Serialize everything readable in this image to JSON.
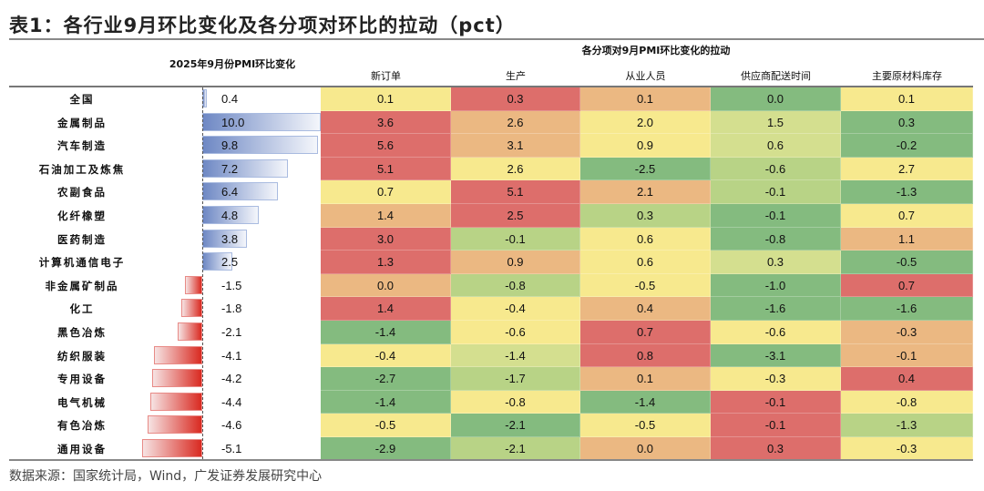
{
  "title": "表1：各行业9月环比变化及各分项对环比的拉动（pct）",
  "source": "数据来源：国家统计局，Wind，广发证券发展研究中心",
  "chart_data": {
    "type": "table",
    "left_header": "2025年9月份PMI环比变化",
    "group_header": "各分项对9月PMI环比变化的拉动",
    "columns": [
      "新订单",
      "生产",
      "从业人员",
      "供应商配送时间",
      "主要原材料库存"
    ],
    "palette": {
      "R": "#dd6e6b",
      "O": "#ebb882",
      "Y": "#f7e98e",
      "LG": "#d4df8f",
      "G": "#b8d386",
      "DG": "#84bb7f"
    },
    "bar_colors": {
      "positive": "#6e88c4",
      "negative": "#d92a21"
    },
    "rows": [
      {
        "industry": "全国",
        "pmi_change": 0.4,
        "values": [
          0.1,
          0.3,
          0.1,
          0.0,
          0.1
        ],
        "colors": [
          "Y",
          "R",
          "O",
          "DG",
          "Y"
        ]
      },
      {
        "industry": "金属制品",
        "pmi_change": 10.0,
        "values": [
          3.6,
          2.6,
          2.0,
          1.5,
          0.3
        ],
        "colors": [
          "R",
          "O",
          "Y",
          "LG",
          "DG"
        ]
      },
      {
        "industry": "汽车制造",
        "pmi_change": 9.8,
        "values": [
          5.6,
          3.1,
          0.9,
          0.6,
          -0.2
        ],
        "colors": [
          "R",
          "O",
          "Y",
          "LG",
          "DG"
        ]
      },
      {
        "industry": "石油加工及炼焦",
        "pmi_change": 7.2,
        "values": [
          5.1,
          2.6,
          -2.5,
          -0.6,
          2.7
        ],
        "colors": [
          "R",
          "Y",
          "DG",
          "G",
          "Y"
        ]
      },
      {
        "industry": "农副食品",
        "pmi_change": 6.4,
        "values": [
          0.7,
          5.1,
          2.1,
          -0.1,
          -1.3
        ],
        "colors": [
          "Y",
          "R",
          "O",
          "G",
          "DG"
        ]
      },
      {
        "industry": "化纤橡塑",
        "pmi_change": 4.8,
        "values": [
          1.4,
          2.5,
          0.3,
          -0.1,
          0.7
        ],
        "colors": [
          "O",
          "R",
          "G",
          "DG",
          "Y"
        ]
      },
      {
        "industry": "医药制造",
        "pmi_change": 3.8,
        "values": [
          3.0,
          -0.1,
          0.6,
          -0.8,
          1.1
        ],
        "colors": [
          "R",
          "G",
          "Y",
          "DG",
          "O"
        ]
      },
      {
        "industry": "计算机通信电子",
        "pmi_change": 2.5,
        "values": [
          1.3,
          0.9,
          0.6,
          0.3,
          -0.5
        ],
        "colors": [
          "R",
          "O",
          "Y",
          "LG",
          "DG"
        ]
      },
      {
        "industry": "非金属矿制品",
        "pmi_change": -1.5,
        "values": [
          0.0,
          -0.8,
          -0.5,
          -1.0,
          0.7
        ],
        "colors": [
          "O",
          "G",
          "Y",
          "DG",
          "R"
        ]
      },
      {
        "industry": "化工",
        "pmi_change": -1.8,
        "values": [
          1.4,
          -0.4,
          0.4,
          -1.6,
          -1.6
        ],
        "colors": [
          "R",
          "Y",
          "O",
          "DG",
          "DG"
        ]
      },
      {
        "industry": "黑色冶炼",
        "pmi_change": -2.1,
        "values": [
          -1.4,
          -0.6,
          0.7,
          -0.6,
          -0.3
        ],
        "colors": [
          "DG",
          "Y",
          "R",
          "Y",
          "O"
        ]
      },
      {
        "industry": "纺织服装",
        "pmi_change": -4.1,
        "values": [
          -0.4,
          -1.4,
          0.8,
          -3.1,
          -0.1
        ],
        "colors": [
          "Y",
          "LG",
          "R",
          "DG",
          "O"
        ]
      },
      {
        "industry": "专用设备",
        "pmi_change": -4.2,
        "values": [
          -2.7,
          -1.7,
          0.1,
          -0.3,
          0.4
        ],
        "colors": [
          "DG",
          "G",
          "O",
          "Y",
          "R"
        ]
      },
      {
        "industry": "电气机械",
        "pmi_change": -4.4,
        "values": [
          -1.4,
          -0.8,
          -1.4,
          -0.1,
          -0.8
        ],
        "colors": [
          "DG",
          "Y",
          "DG",
          "R",
          "Y"
        ]
      },
      {
        "industry": "有色冶炼",
        "pmi_change": -4.6,
        "values": [
          -0.5,
          -2.1,
          -0.5,
          -0.1,
          -1.3
        ],
        "colors": [
          "Y",
          "DG",
          "Y",
          "R",
          "G"
        ]
      },
      {
        "industry": "通用设备",
        "pmi_change": -5.1,
        "values": [
          -2.9,
          -2.1,
          0.0,
          0.3,
          -0.3
        ],
        "colors": [
          "DG",
          "G",
          "O",
          "R",
          "Y"
        ]
      }
    ]
  }
}
